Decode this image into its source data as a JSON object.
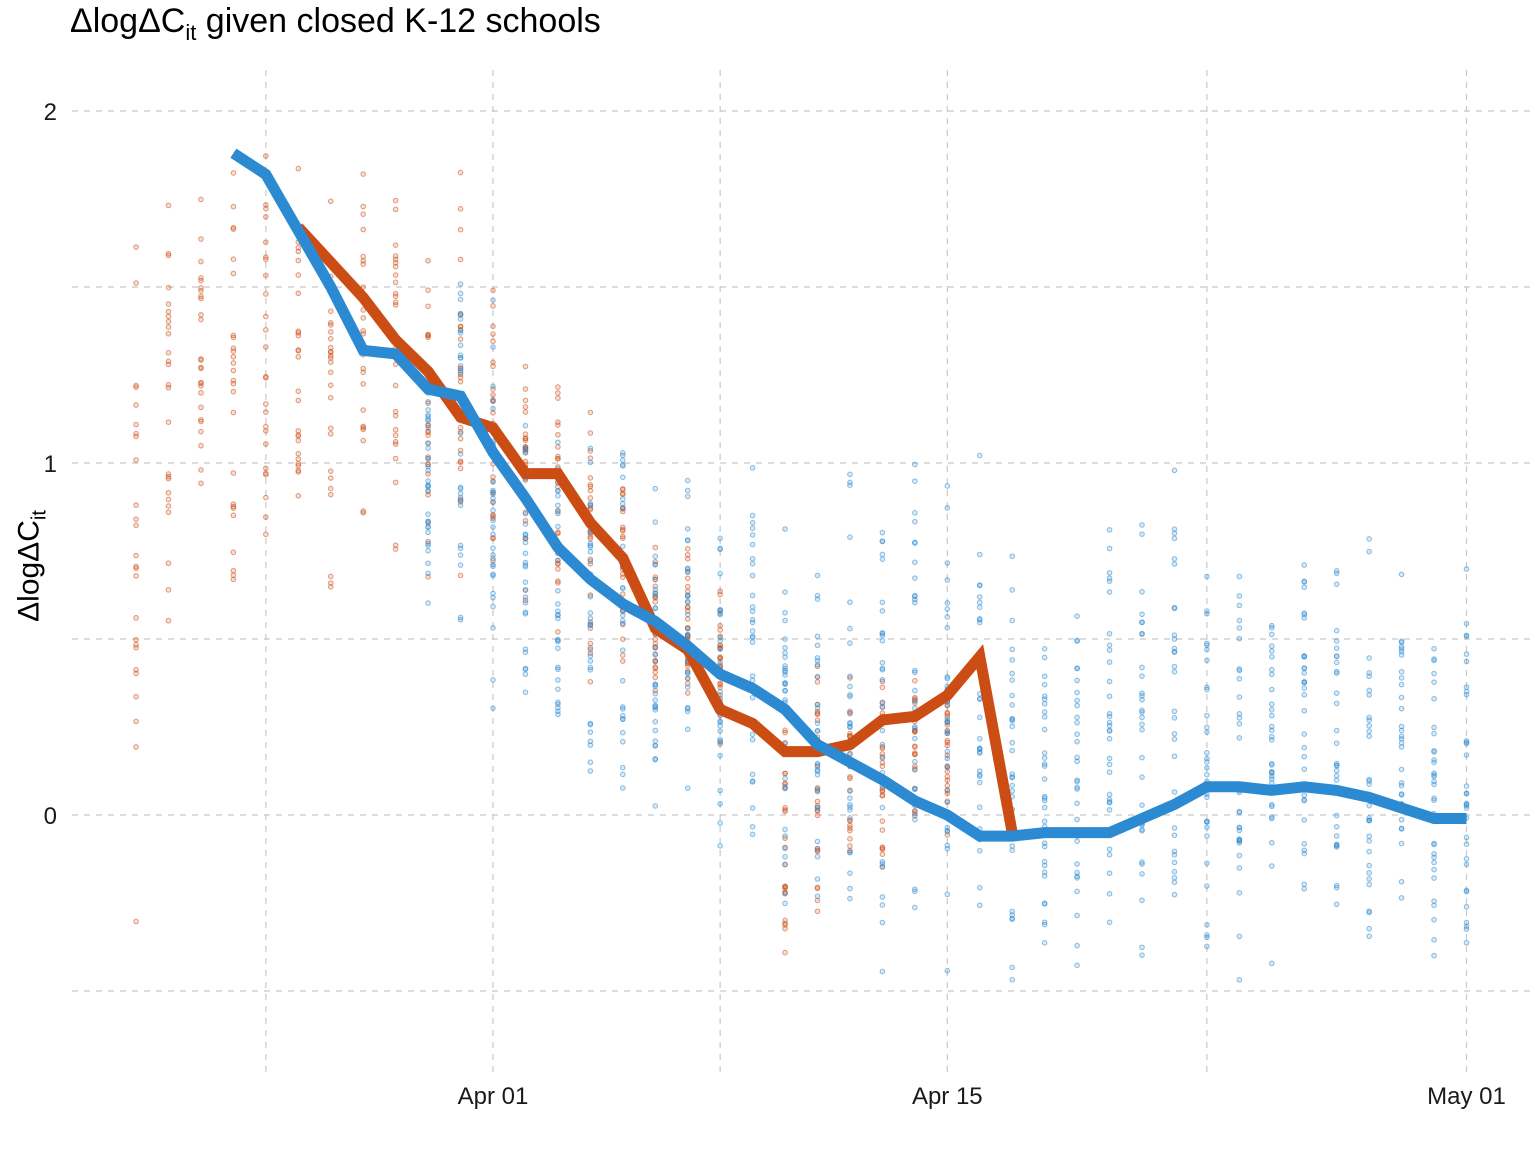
{
  "title": {
    "prefix": "ΔlogΔC",
    "sub": "it",
    "suffix": " given closed K-12 schools"
  },
  "ylabel": {
    "main": "ΔlogΔC",
    "sub": "it"
  },
  "chart_data": {
    "type": "line",
    "x_axis": {
      "type": "date",
      "range": [
        "2020-03-23",
        "2020-05-01"
      ],
      "tick_labels": [
        "Apr 01",
        "Apr 15",
        "May 01"
      ],
      "tick_dates": [
        "2020-04-01",
        "2020-04-15",
        "2020-05-01"
      ],
      "minor_grid_dates": [
        "2020-03-25",
        "2020-04-08",
        "2020-04-23"
      ]
    },
    "y_axis": {
      "range": [
        -0.72,
        2.1
      ],
      "tick_labels": [
        "0",
        "1",
        "2"
      ],
      "ticks": [
        0,
        1,
        2
      ],
      "minor_grid": [
        -0.5,
        0.5,
        1.5
      ]
    },
    "grid": "dashed",
    "colors": {
      "orange": "#cc4d14",
      "blue": "#2b8ad2"
    },
    "series": [
      {
        "color": "#cc4d14",
        "x": [
          "2020-03-26",
          "2020-03-27",
          "2020-03-28",
          "2020-03-29",
          "2020-03-30",
          "2020-03-31",
          "2020-04-01",
          "2020-04-02",
          "2020-04-03",
          "2020-04-04",
          "2020-04-05",
          "2020-04-06",
          "2020-04-07",
          "2020-04-08",
          "2020-04-09",
          "2020-04-10",
          "2020-04-11",
          "2020-04-12",
          "2020-04-13",
          "2020-04-14",
          "2020-04-15",
          "2020-04-16",
          "2020-04-17"
        ],
        "y": [
          1.67,
          1.57,
          1.47,
          1.35,
          1.26,
          1.13,
          1.1,
          0.97,
          0.97,
          0.83,
          0.73,
          0.53,
          0.47,
          0.3,
          0.26,
          0.18,
          0.18,
          0.2,
          0.27,
          0.28,
          0.34,
          0.45,
          -0.05
        ]
      },
      {
        "color": "#2b8ad2",
        "x": [
          "2020-03-24",
          "2020-03-25",
          "2020-03-26",
          "2020-03-27",
          "2020-03-28",
          "2020-03-29",
          "2020-03-30",
          "2020-03-31",
          "2020-04-01",
          "2020-04-02",
          "2020-04-03",
          "2020-04-04",
          "2020-04-05",
          "2020-04-06",
          "2020-04-07",
          "2020-04-08",
          "2020-04-09",
          "2020-04-10",
          "2020-04-11",
          "2020-04-12",
          "2020-04-13",
          "2020-04-14",
          "2020-04-15",
          "2020-04-16",
          "2020-04-17",
          "2020-04-18",
          "2020-04-19",
          "2020-04-20",
          "2020-04-21",
          "2020-04-22",
          "2020-04-23",
          "2020-04-24",
          "2020-04-25",
          "2020-04-26",
          "2020-04-27",
          "2020-04-28",
          "2020-04-29",
          "2020-04-30",
          "2020-05-01"
        ],
        "y": [
          1.88,
          1.82,
          1.66,
          1.5,
          1.32,
          1.31,
          1.21,
          1.19,
          1.03,
          0.9,
          0.76,
          0.67,
          0.6,
          0.55,
          0.48,
          0.4,
          0.36,
          0.3,
          0.2,
          0.15,
          0.1,
          0.04,
          0.0,
          -0.06,
          -0.06,
          -0.05,
          -0.05,
          -0.05,
          -0.01,
          0.03,
          0.08,
          0.08,
          0.07,
          0.08,
          0.07,
          0.05,
          0.02,
          -0.01,
          -0.01
        ]
      }
    ],
    "scatter": {
      "orange_dates": [
        "2020-03-21",
        "2020-03-22",
        "2020-03-23",
        "2020-03-24",
        "2020-03-25",
        "2020-03-26",
        "2020-03-27",
        "2020-03-28",
        "2020-03-29",
        "2020-03-30",
        "2020-03-31",
        "2020-04-01",
        "2020-04-02",
        "2020-04-03",
        "2020-04-04",
        "2020-04-05",
        "2020-04-06",
        "2020-04-07",
        "2020-04-08",
        "2020-04-10",
        "2020-04-11",
        "2020-04-12",
        "2020-04-13",
        "2020-04-14",
        "2020-04-15"
      ],
      "orange_envelope_hi": [
        1.95,
        1.98,
        1.96,
        1.96,
        2.0,
        1.92,
        1.92,
        1.9,
        1.88,
        1.86,
        1.95,
        1.6,
        1.45,
        1.38,
        1.32,
        1.14,
        0.8,
        0.88,
        0.7,
        0.5,
        0.56,
        0.5,
        0.52,
        0.45,
        0.47
      ],
      "orange_envelope_lo": [
        -0.6,
        0.28,
        0.6,
        0.38,
        0.7,
        0.63,
        0.45,
        0.65,
        0.64,
        0.55,
        0.66,
        0.58,
        0.5,
        0.4,
        0.3,
        0.33,
        0.28,
        0.2,
        0.18,
        -0.55,
        -0.43,
        -0.28,
        -0.22,
        -0.1,
        -0.1
      ],
      "blue_dates": [
        "2020-03-30",
        "2020-03-31",
        "2020-04-01",
        "2020-04-02",
        "2020-04-03",
        "2020-04-04",
        "2020-04-05",
        "2020-04-06",
        "2020-04-07",
        "2020-04-08",
        "2020-04-09",
        "2020-04-10",
        "2020-04-11",
        "2020-04-12",
        "2020-04-13",
        "2020-04-14",
        "2020-04-15",
        "2020-04-16",
        "2020-04-17",
        "2020-04-18",
        "2020-04-19",
        "2020-04-20",
        "2020-04-21",
        "2020-04-22",
        "2020-04-23",
        "2020-04-24",
        "2020-04-25",
        "2020-04-26",
        "2020-04-27",
        "2020-04-28",
        "2020-04-29",
        "2020-04-30",
        "2020-05-01"
      ],
      "blue_envelope_hi": [
        1.4,
        1.75,
        1.55,
        1.3,
        1.2,
        1.2,
        1.3,
        1.05,
        1.05,
        1.1,
        1.2,
        1.0,
        1.05,
        1.2,
        1.1,
        1.15,
        1.1,
        1.12,
        0.92,
        0.8,
        0.68,
        1.0,
        1.02,
        1.06,
        1.0,
        0.93,
        0.85,
        0.95,
        0.9,
        0.86,
        0.86,
        0.75,
        0.82
      ],
      "blue_envelope_lo": [
        0.5,
        0.45,
        0.13,
        0.13,
        0.0,
        -0.2,
        -0.28,
        -0.2,
        -0.15,
        -0.3,
        -0.35,
        -0.42,
        -0.48,
        -0.58,
        -0.6,
        -0.55,
        -0.6,
        -0.6,
        -0.6,
        -0.55,
        -0.5,
        -0.5,
        -0.55,
        -0.5,
        -0.55,
        -0.55,
        -0.5,
        -0.48,
        -0.5,
        -0.5,
        -0.55,
        -0.58,
        -0.58
      ]
    }
  }
}
